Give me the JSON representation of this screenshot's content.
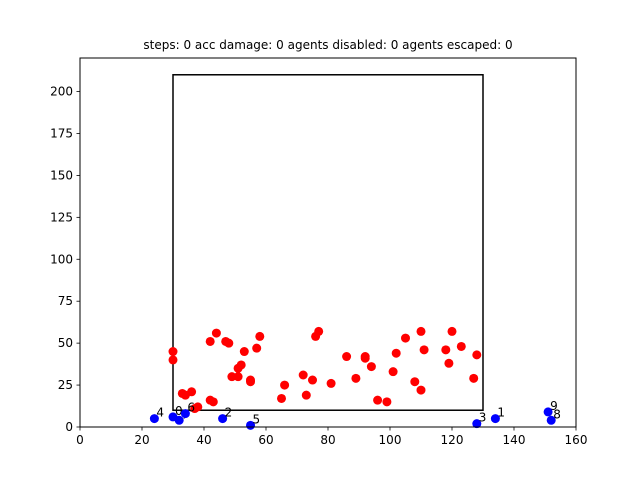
{
  "chart_data": {
    "type": "scatter",
    "title": "steps: 0   acc damage: 0   agents disabled: 0   agents escaped: 0",
    "xlabel": "",
    "ylabel": "",
    "xlim": [
      0,
      160
    ],
    "ylim": [
      0,
      220
    ],
    "x_ticks": [
      0,
      20,
      40,
      60,
      80,
      100,
      120,
      140,
      160
    ],
    "y_ticks": [
      0,
      25,
      50,
      75,
      100,
      125,
      150,
      175,
      200
    ],
    "grid": false,
    "legend": "none",
    "rectangle": {
      "x0": 30,
      "y0": 10,
      "x1": 130,
      "y1": 210,
      "color": "#000000"
    },
    "series": [
      {
        "color": "#ff0000",
        "points": [
          [
            30,
            45
          ],
          [
            30,
            40
          ],
          [
            33,
            20
          ],
          [
            34,
            19
          ],
          [
            36,
            21
          ],
          [
            37,
            11
          ],
          [
            38,
            12
          ],
          [
            42,
            16
          ],
          [
            42,
            51
          ],
          [
            43,
            15
          ],
          [
            44,
            56
          ],
          [
            47,
            51
          ],
          [
            48,
            50
          ],
          [
            49,
            30
          ],
          [
            51,
            30
          ],
          [
            51,
            35
          ],
          [
            52,
            37
          ],
          [
            53,
            45
          ],
          [
            55,
            28
          ],
          [
            55,
            27
          ],
          [
            57,
            47
          ],
          [
            58,
            54
          ],
          [
            65,
            17
          ],
          [
            66,
            25
          ],
          [
            72,
            31
          ],
          [
            73,
            19
          ],
          [
            75,
            28
          ],
          [
            76,
            54
          ],
          [
            77,
            57
          ],
          [
            81,
            26
          ],
          [
            86,
            42
          ],
          [
            89,
            29
          ],
          [
            92,
            42
          ],
          [
            92,
            41
          ],
          [
            94,
            36
          ],
          [
            96,
            16
          ],
          [
            99,
            15
          ],
          [
            101,
            33
          ],
          [
            102,
            44
          ],
          [
            105,
            53
          ],
          [
            108,
            27
          ],
          [
            110,
            57
          ],
          [
            110,
            22
          ],
          [
            111,
            46
          ],
          [
            118,
            46
          ],
          [
            119,
            38
          ],
          [
            120,
            57
          ],
          [
            123,
            48
          ],
          [
            127,
            29
          ],
          [
            128,
            43
          ]
        ]
      },
      {
        "color": "#0000ff",
        "points": [
          [
            24,
            5
          ],
          [
            30,
            6
          ],
          [
            32,
            4
          ],
          [
            34,
            8
          ],
          [
            46,
            5
          ],
          [
            55,
            1
          ],
          [
            128,
            2
          ],
          [
            134,
            5
          ],
          [
            151,
            9
          ],
          [
            152,
            4
          ]
        ],
        "labels": [
          "4",
          "0",
          "7",
          "6",
          "2",
          "5",
          "3",
          "1",
          "9",
          "8"
        ]
      }
    ]
  }
}
